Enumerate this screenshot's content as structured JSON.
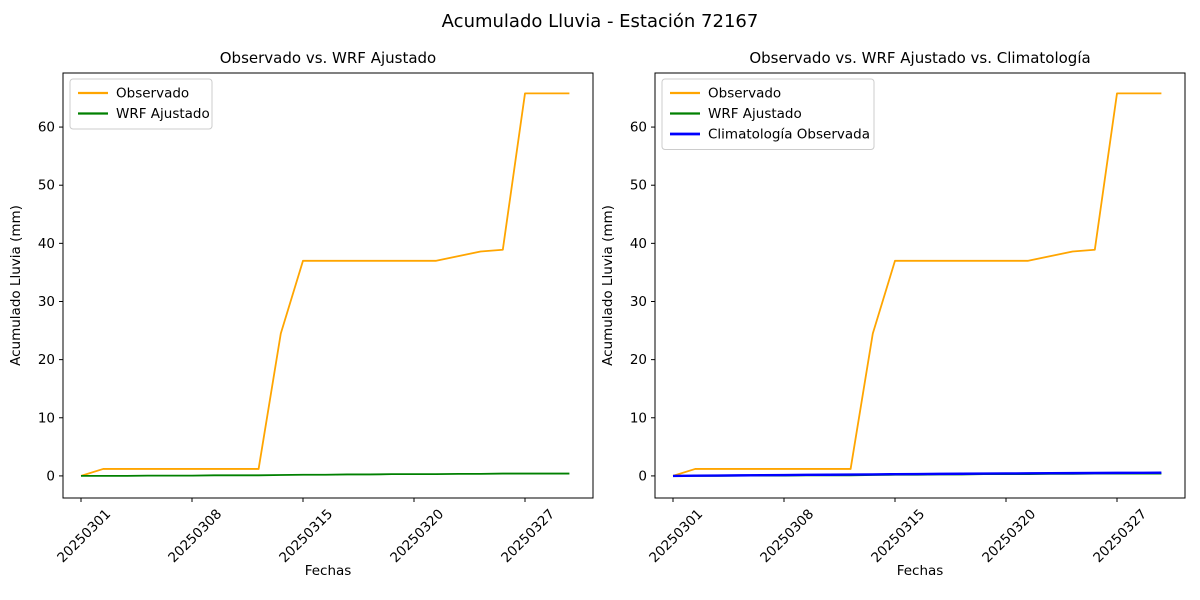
{
  "figure": {
    "title": "Acumulado Lluvia - Estación 72167",
    "background_color": "#ffffff",
    "text_color": "#000000"
  },
  "chart_data": [
    {
      "type": "line",
      "title": "Observado vs. WRF Ajustado",
      "xlabel": "Fechas",
      "ylabel": "Acumulado Lluvia (mm)",
      "x_points": 23,
      "xtick_indices": [
        0,
        5,
        10,
        15,
        20
      ],
      "xtick_labels": [
        "20250301",
        "20250308",
        "20250315",
        "20250320",
        "20250327"
      ],
      "xtick_rotation_deg": 45,
      "yticks": [
        0,
        10,
        20,
        30,
        40,
        50,
        60
      ],
      "ylim": [
        -3.8,
        69.3
      ],
      "grid": false,
      "legend_position": "upper left",
      "series": [
        {
          "name": "Observado",
          "color": "#FFA500",
          "linewidth": 1.8,
          "values": [
            0,
            1.2,
            1.2,
            1.2,
            1.2,
            1.2,
            1.2,
            1.2,
            1.2,
            24.5,
            37,
            37,
            37,
            37,
            37,
            37,
            37,
            37.8,
            38.6,
            38.9,
            65.8,
            65.8,
            65.8
          ]
        },
        {
          "name": "WRF Ajustado",
          "color": "#008000",
          "linewidth": 1.8,
          "values": [
            0,
            0,
            0,
            0.05,
            0.05,
            0.05,
            0.1,
            0.1,
            0.1,
            0.15,
            0.2,
            0.2,
            0.25,
            0.25,
            0.3,
            0.3,
            0.3,
            0.35,
            0.35,
            0.4,
            0.4,
            0.4,
            0.4
          ]
        }
      ]
    },
    {
      "type": "line",
      "title": "Observado vs. WRF Ajustado vs. Climatología",
      "xlabel": "Fechas",
      "ylabel": "Acumulado Lluvia (mm)",
      "x_points": 23,
      "xtick_indices": [
        0,
        5,
        10,
        15,
        20
      ],
      "xtick_labels": [
        "20250301",
        "20250308",
        "20250315",
        "20250320",
        "20250327"
      ],
      "xtick_rotation_deg": 45,
      "yticks": [
        0,
        10,
        20,
        30,
        40,
        50,
        60
      ],
      "ylim": [
        -3.8,
        69.3
      ],
      "grid": false,
      "legend_position": "upper left",
      "series": [
        {
          "name": "Observado",
          "color": "#FFA500",
          "linewidth": 1.8,
          "values": [
            0,
            1.2,
            1.2,
            1.2,
            1.2,
            1.2,
            1.2,
            1.2,
            1.2,
            24.5,
            37,
            37,
            37,
            37,
            37,
            37,
            37,
            37.8,
            38.6,
            38.9,
            65.8,
            65.8,
            65.8
          ]
        },
        {
          "name": "WRF Ajustado",
          "color": "#008000",
          "linewidth": 1.8,
          "values": [
            0,
            0,
            0,
            0.05,
            0.05,
            0.05,
            0.1,
            0.1,
            0.1,
            0.15,
            0.2,
            0.2,
            0.25,
            0.25,
            0.3,
            0.3,
            0.3,
            0.35,
            0.35,
            0.4,
            0.4,
            0.4,
            0.4
          ]
        },
        {
          "name": "Climatología Observada",
          "color": "#0000FF",
          "linewidth": 2.4,
          "values": [
            0,
            0.03,
            0.06,
            0.09,
            0.12,
            0.15,
            0.18,
            0.2,
            0.23,
            0.26,
            0.3,
            0.32,
            0.35,
            0.37,
            0.4,
            0.42,
            0.44,
            0.46,
            0.48,
            0.5,
            0.52,
            0.53,
            0.55
          ]
        }
      ]
    }
  ]
}
